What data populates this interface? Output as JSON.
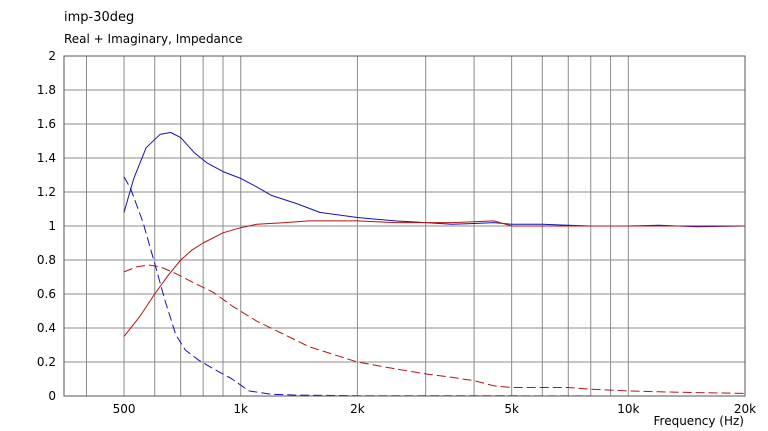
{
  "chart_data": {
    "type": "line",
    "title": "imp-30deg",
    "subtitle": "Real + Imaginary, Impedance",
    "xlabel": "Frequency  (Hz)",
    "ylabel": "",
    "xscale": "log",
    "xlim": [
      350,
      20000
    ],
    "ylim": [
      0,
      2
    ],
    "grid": true,
    "x_ticks": [
      {
        "value": 500,
        "label": "500"
      },
      {
        "value": 1000,
        "label": "1k"
      },
      {
        "value": 2000,
        "label": "2k"
      },
      {
        "value": 5000,
        "label": "5k"
      },
      {
        "value": 10000,
        "label": "10k"
      },
      {
        "value": 20000,
        "label": "20k"
      }
    ],
    "y_ticks": [
      "0",
      "0.2",
      "0.4",
      "0.6",
      "0.8",
      "1",
      "1.2",
      "1.4",
      "1.6",
      "1.8",
      "2"
    ],
    "colors": {
      "blue": "#1515b0",
      "red": "#b01515",
      "grid": "#8c8c8c"
    },
    "series": [
      {
        "color": "blue",
        "style": "solid",
        "x": [
          500,
          530,
          570,
          620,
          660,
          700,
          760,
          820,
          900,
          1000,
          1100,
          1200,
          1400,
          1600,
          2000,
          2500,
          3000,
          3500,
          4000,
          4500,
          5000,
          6000,
          7000,
          8000,
          10000,
          12000,
          15000,
          20000
        ],
        "y": [
          1.08,
          1.28,
          1.46,
          1.54,
          1.55,
          1.52,
          1.43,
          1.37,
          1.32,
          1.28,
          1.23,
          1.18,
          1.13,
          1.08,
          1.05,
          1.03,
          1.02,
          1.01,
          1.015,
          1.02,
          1.01,
          1.01,
          1.005,
          1.0,
          1.0,
          1.005,
          0.995,
          1.0
        ]
      },
      {
        "color": "blue",
        "style": "dashed",
        "x": [
          500,
          520,
          560,
          600,
          640,
          680,
          720,
          780,
          850,
          950,
          1050,
          1200,
          1400,
          2000,
          3000,
          5000,
          10000,
          20000
        ],
        "y": [
          1.29,
          1.22,
          1.02,
          0.78,
          0.55,
          0.36,
          0.27,
          0.21,
          0.16,
          0.1,
          0.03,
          0.01,
          0.005,
          0.002,
          0.002,
          0.001,
          0.0,
          0.0
        ]
      },
      {
        "color": "red",
        "style": "solid",
        "x": [
          500,
          550,
          600,
          650,
          700,
          750,
          800,
          900,
          1000,
          1100,
          1300,
          1500,
          1800,
          2000,
          2500,
          3000,
          3500,
          4000,
          4500,
          5000,
          6000,
          7000,
          8000,
          10000,
          12000,
          15000,
          20000
        ],
        "y": [
          0.35,
          0.47,
          0.6,
          0.71,
          0.8,
          0.86,
          0.9,
          0.96,
          0.99,
          1.01,
          1.02,
          1.03,
          1.03,
          1.03,
          1.02,
          1.02,
          1.02,
          1.025,
          1.03,
          1.0,
          1.0,
          1.0,
          1.0,
          1.0,
          1.0,
          1.0,
          1.0
        ]
      },
      {
        "color": "red",
        "style": "dashed",
        "x": [
          500,
          540,
          580,
          620,
          680,
          750,
          850,
          950,
          1100,
          1300,
          1500,
          2000,
          2500,
          3000,
          3500,
          4000,
          4500,
          5000,
          6000,
          7000,
          8000,
          10000,
          12000,
          15000,
          20000
        ],
        "y": [
          0.73,
          0.76,
          0.77,
          0.76,
          0.72,
          0.67,
          0.61,
          0.53,
          0.44,
          0.36,
          0.29,
          0.2,
          0.16,
          0.13,
          0.11,
          0.09,
          0.06,
          0.05,
          0.05,
          0.05,
          0.04,
          0.03,
          0.025,
          0.02,
          0.015
        ]
      }
    ]
  }
}
